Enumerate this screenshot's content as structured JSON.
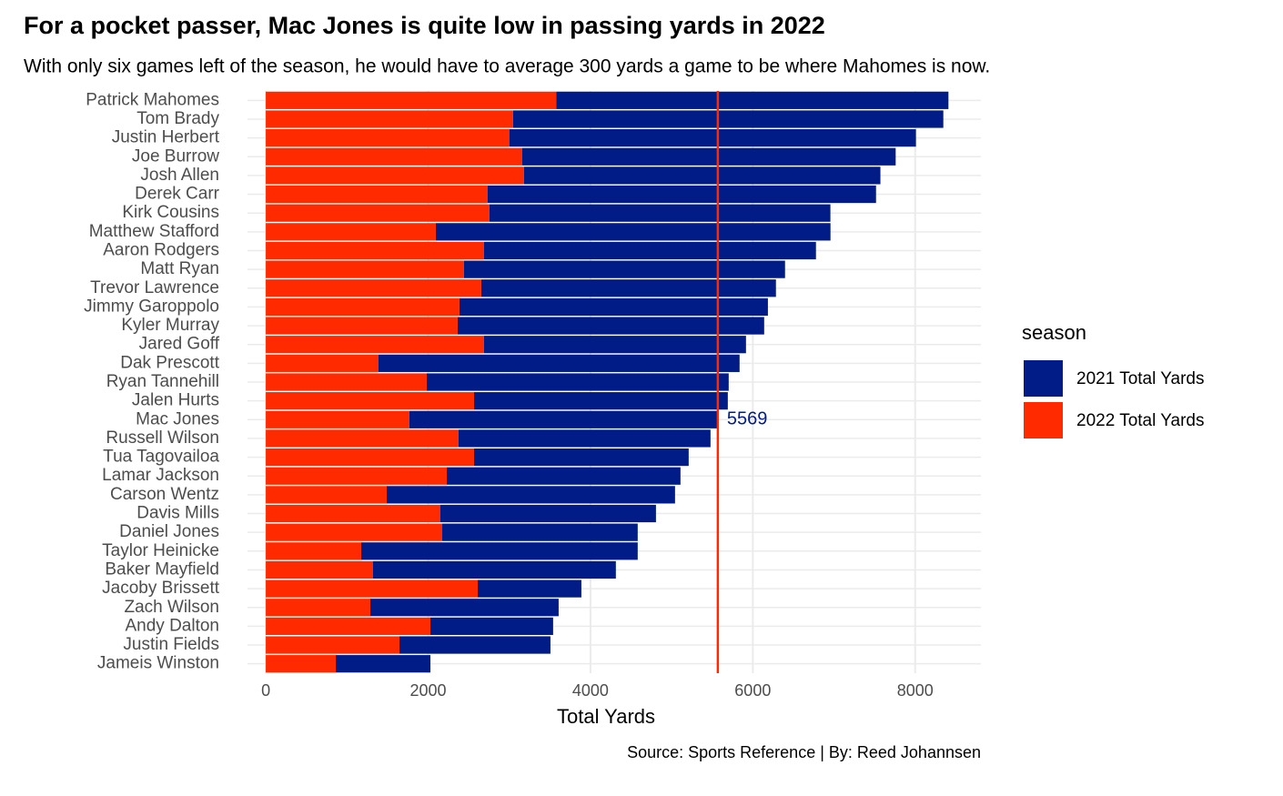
{
  "chart_data": {
    "type": "stacked-bar-horizontal",
    "title": "For a pocket passer, Mac Jones is quite low in passing yards in 2022",
    "subtitle": "With only six games left of the season, he would have to average 300 yards a game to be where Mahomes is now.",
    "x_label": "Total Yards",
    "caption": "Source: Sports Reference | By: Reed Johannsen",
    "legend_title": "season",
    "categories": [
      "Patrick Mahomes",
      "Tom Brady",
      "Justin Herbert",
      "Joe Burrow",
      "Josh Allen",
      "Derek Carr",
      "Kirk Cousins",
      "Matthew Stafford",
      "Aaron Rodgers",
      "Matt Ryan",
      "Trevor Lawrence",
      "Jimmy Garoppolo",
      "Kyler Murray",
      "Jared Goff",
      "Dak Prescott",
      "Ryan Tannehill",
      "Jalen Hurts",
      "Mac Jones",
      "Russell Wilson",
      "Tua Tagovailoa",
      "Lamar Jackson",
      "Carson Wentz",
      "Davis Mills",
      "Daniel Jones",
      "Taylor Heinicke",
      "Baker Mayfield",
      "Jacoby Brissett",
      "Zach Wilson",
      "Andy Dalton",
      "Justin Fields",
      "Jameis Winston"
    ],
    "series": [
      {
        "name": "2021 Total Yards",
        "color": "#011c87",
        "values": [
          4830,
          5300,
          5010,
          4600,
          4390,
          4784,
          4200,
          4862,
          4089,
          3955,
          3630,
          3800,
          3776,
          3227,
          4448,
          3720,
          3126,
          3800,
          3104,
          2644,
          2879,
          3552,
          2656,
          2408,
          3406,
          2991,
          1277,
          2320,
          1512,
          1860,
          1165
        ]
      },
      {
        "name": "2022 Total Yards",
        "color": "#ff2a00",
        "values": [
          3580,
          3047,
          3000,
          3160,
          3182,
          2734,
          2756,
          2095,
          2689,
          2442,
          2655,
          2386,
          2364,
          2689,
          1389,
          1983,
          2566,
          1769,
          2375,
          2566,
          2230,
          1490,
          2151,
          2174,
          1176,
          1322,
          2611,
          1288,
          2028,
          1647,
          863
        ]
      }
    ],
    "vline": {
      "value": 5569,
      "color": "#ff2a00",
      "label_color": "#011c87"
    },
    "xlim": [
      -225,
      8810
    ],
    "xticks": [
      0,
      2000,
      4000,
      6000,
      8000
    ],
    "grid": true
  }
}
